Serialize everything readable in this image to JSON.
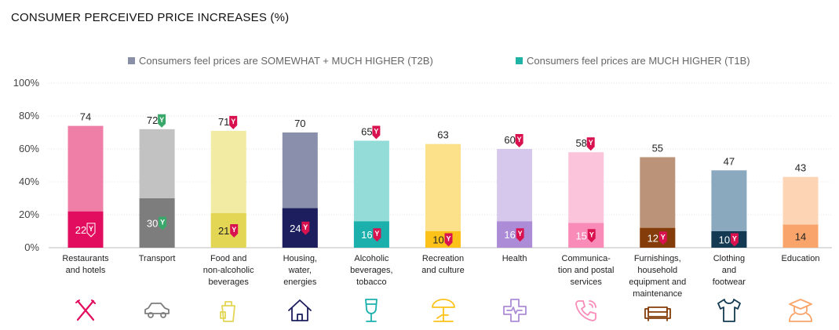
{
  "title": "CONSUMER PERCEIVED PRICE INCREASES (%)",
  "legend": {
    "t2b_label": "Consumers feel prices are SOMEWHAT + MUCH HIGHER (T2B)",
    "t1b_label": "Consumers feel prices are MUCH HIGHER (T1B)",
    "t2b_color": "#8a8fa8",
    "t1b_color": "#1fb3a8"
  },
  "badge_letter": "Y",
  "badge_colors": {
    "red": "#d9114e",
    "green": "#3aa86a"
  },
  "chart_data": {
    "type": "bar",
    "ylim": [
      0,
      100
    ],
    "yticks": [
      "0%",
      "20%",
      "40%",
      "60%",
      "80%",
      "100%"
    ],
    "ytick_values": [
      0,
      20,
      40,
      60,
      80,
      100
    ],
    "grid": true,
    "legend_position": "top",
    "categories": [
      {
        "lines": [
          "Restaurants",
          "and hotels"
        ],
        "t2b": 74,
        "t1b": 22,
        "light": "#f07fa8",
        "dark": "#e20d5f",
        "t1b_text": "#ffffff",
        "t2b_badge": "",
        "t1b_badge": "outline",
        "icon": "fork-knife-icon"
      },
      {
        "lines": [
          "Transport"
        ],
        "t2b": 72,
        "t1b": 30,
        "light": "#c2c2c2",
        "dark": "#7d7d7d",
        "t1b_text": "#ffffff",
        "t2b_badge": "green",
        "t1b_badge": "green",
        "icon": "car-icon"
      },
      {
        "lines": [
          "Food and",
          "non-alcoholic",
          "beverages"
        ],
        "t2b": 71,
        "t1b": 21,
        "light": "#f1eba4",
        "dark": "#e3d655",
        "t1b_text": "#222222",
        "t2b_badge": "red",
        "t1b_badge": "red",
        "icon": "grocery-bag-icon"
      },
      {
        "lines": [
          "Housing,",
          "water,",
          "energies"
        ],
        "t2b": 70,
        "t1b": 24,
        "light": "#8a8fab",
        "dark": "#1d1e5e",
        "t1b_text": "#ffffff",
        "t2b_badge": "",
        "t1b_badge": "red",
        "icon": "house-icon"
      },
      {
        "lines": [
          "Alcoholic",
          "beverages,",
          "tobacco"
        ],
        "t2b": 65,
        "t1b": 16,
        "light": "#94dcd8",
        "dark": "#1cb0ad",
        "t1b_text": "#ffffff",
        "t2b_badge": "red",
        "t1b_badge": "red",
        "icon": "wine-glass-icon"
      },
      {
        "lines": [
          "Recreation",
          "and culture"
        ],
        "t2b": 63,
        "t1b": 10,
        "light": "#fde08a",
        "dark": "#fcc21a",
        "t1b_text": "#222222",
        "t2b_badge": "",
        "t1b_badge": "red",
        "icon": "beach-umbrella-icon"
      },
      {
        "lines": [
          "Health"
        ],
        "t2b": 60,
        "t1b": 16,
        "light": "#d6c8ec",
        "dark": "#ad8cd7",
        "t1b_text": "#ffffff",
        "t2b_badge": "red",
        "t1b_badge": "red",
        "icon": "medical-cross-icon"
      },
      {
        "lines": [
          "Communica-",
          "tion and postal",
          "services"
        ],
        "t2b": 58,
        "t1b": 15,
        "light": "#fcc4da",
        "dark": "#f98bb8",
        "t1b_text": "#ffffff",
        "t2b_badge": "red",
        "t1b_badge": "red",
        "icon": "phone-icon"
      },
      {
        "lines": [
          "Furnishings,",
          "household",
          "equipment and",
          "maintenance"
        ],
        "t2b": 55,
        "t1b": 12,
        "light": "#bb9378",
        "dark": "#843d0a",
        "t1b_text": "#ffffff",
        "t2b_badge": "",
        "t1b_badge": "red",
        "icon": "sofa-icon"
      },
      {
        "lines": [
          "Clothing",
          "and",
          "footwear"
        ],
        "t2b": 47,
        "t1b": 10,
        "light": "#8aa9bf",
        "dark": "#133a52",
        "t1b_text": "#ffffff",
        "t2b_badge": "",
        "t1b_badge": "red",
        "icon": "tshirt-icon"
      },
      {
        "lines": [
          "Education"
        ],
        "t2b": 43,
        "t1b": 14,
        "light": "#fdd5b4",
        "dark": "#f9a46a",
        "t1b_text": "#222222",
        "t2b_badge": "",
        "t1b_badge": "",
        "icon": "graduate-icon"
      }
    ]
  }
}
